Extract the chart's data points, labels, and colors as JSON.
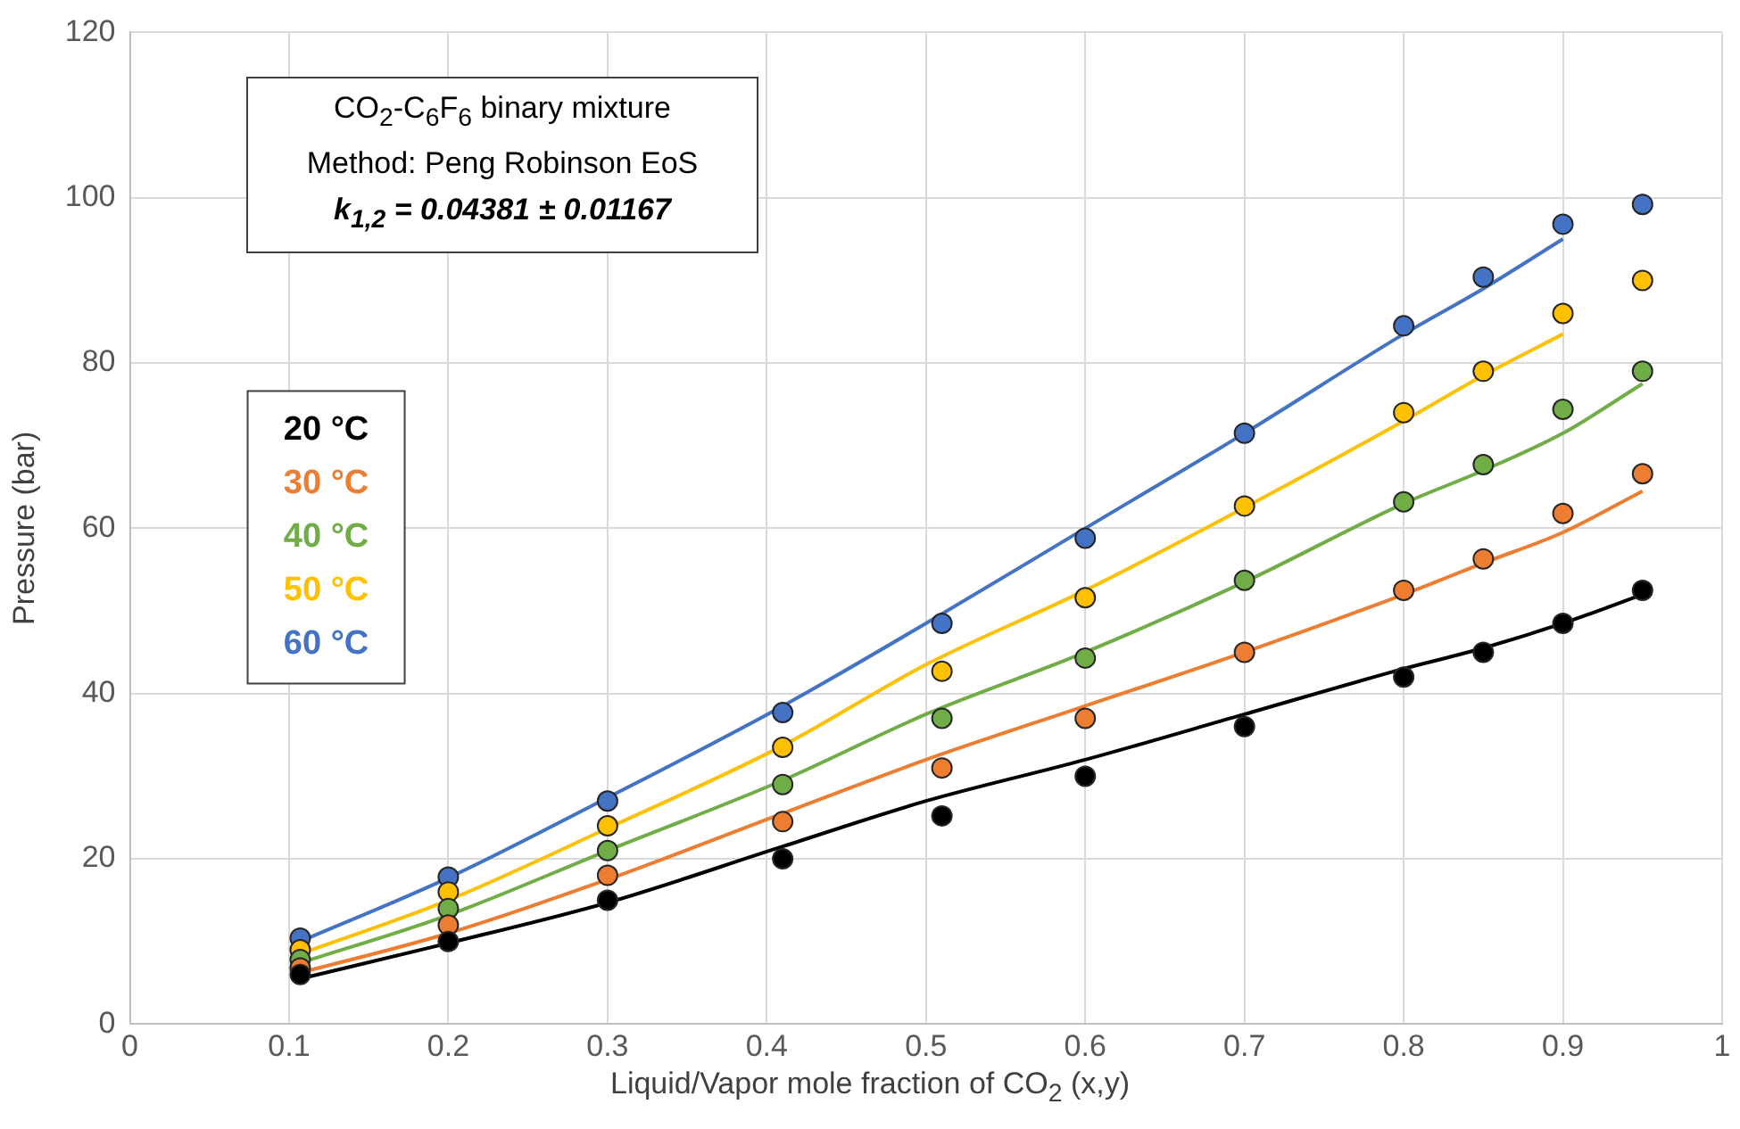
{
  "chart_data": {
    "type": "scatter",
    "xlabel": "Liquid/Vapor mole fraction of CO$_{2}$ (x,y)",
    "ylabel": "Pressure (bar)",
    "annotations": [
      "CO$_{2}$-C$_{6}$F$_{6}$ binary mixture",
      "Method: Peng Robinson EoS",
      "k$_{1,2}$ = 0.04381 ± 0.01167"
    ],
    "x": [
      0.107,
      0.2,
      0.3,
      0.41,
      0.51,
      0.6,
      0.7,
      0.8,
      0.85,
      0.9,
      0.95
    ],
    "series": [
      {
        "name": "20 °C",
        "color": "#000000",
        "values": [
          6,
          10,
          15,
          20,
          25.2,
          30,
          36,
          42,
          45,
          48.5,
          52.5
        ]
      },
      {
        "name": "30 °C",
        "color": "#ed7d31",
        "values": [
          6.8,
          12,
          18,
          24.5,
          31,
          37,
          45,
          52.5,
          56.3,
          61.8,
          66.6
        ]
      },
      {
        "name": "40 °C",
        "color": "#70ad47",
        "values": [
          7.8,
          14,
          21,
          29,
          37,
          44.3,
          53.7,
          63.2,
          67.7,
          74.4,
          79
        ]
      },
      {
        "name": "50 °C",
        "color": "#ffc000",
        "values": [
          9,
          16,
          24,
          33.5,
          42.7,
          51.6,
          62.7,
          74,
          79,
          86,
          90
        ]
      },
      {
        "name": "60 °C",
        "color": "#4472c4",
        "values": [
          10.4,
          17.8,
          27,
          37.7,
          48.5,
          58.8,
          71.5,
          84.5,
          90.4,
          96.8,
          99.2
        ]
      },
      {
        "type": "line",
        "marker": "none",
        "color": "#000000",
        "x": [
          0.107,
          0.2,
          0.3,
          0.41,
          0.5,
          0.6,
          0.7,
          0.8,
          0.85,
          0.9,
          0.95
        ],
        "values": [
          5.5,
          9.8,
          14.7,
          21.5,
          27,
          32,
          37.5,
          43,
          45.5,
          48.5,
          52
        ]
      },
      {
        "type": "line",
        "marker": "none",
        "color": "#ed7d31",
        "x": [
          0.107,
          0.2,
          0.3,
          0.41,
          0.5,
          0.6,
          0.7,
          0.8,
          0.85,
          0.9,
          0.95
        ],
        "values": [
          6.2,
          11,
          17.5,
          25.5,
          32,
          38.5,
          45,
          52,
          55.8,
          59.5,
          64.5
        ]
      },
      {
        "type": "line",
        "marker": "none",
        "color": "#70ad47",
        "x": [
          0.107,
          0.2,
          0.3,
          0.41,
          0.5,
          0.6,
          0.7,
          0.8,
          0.85,
          0.9,
          0.95
        ],
        "values": [
          7.4,
          13.2,
          21,
          29.5,
          37.5,
          45,
          53.5,
          63,
          67,
          71.5,
          77.5
        ]
      },
      {
        "type": "line",
        "marker": "none",
        "color": "#ffc000",
        "x": [
          0.107,
          0.2,
          0.3,
          0.41,
          0.5,
          0.6,
          0.7,
          0.8,
          0.85,
          0.9
        ],
        "values": [
          8.5,
          15,
          23.7,
          33.7,
          43.5,
          52.5,
          62.5,
          73,
          78.5,
          83.5
        ]
      },
      {
        "type": "line",
        "marker": "none",
        "color": "#4472c4",
        "x": [
          0.107,
          0.2,
          0.3,
          0.41,
          0.5,
          0.6,
          0.7,
          0.8,
          0.85,
          0.9
        ],
        "values": [
          10,
          17.7,
          27.4,
          38.5,
          48.5,
          60,
          71.5,
          83.5,
          89,
          95
        ]
      }
    ],
    "xlim": [
      0,
      1
    ],
    "xticks": [
      0,
      0.1,
      0.2,
      0.3,
      0.4,
      0.5,
      0.6,
      0.7,
      0.8,
      0.9,
      1
    ],
    "ylim": [
      0,
      120
    ],
    "yticks": [
      0,
      20,
      40,
      60,
      80,
      100,
      120
    ],
    "grid": true,
    "legend": "left",
    "marker": "circle",
    "line_style": "solid"
  }
}
